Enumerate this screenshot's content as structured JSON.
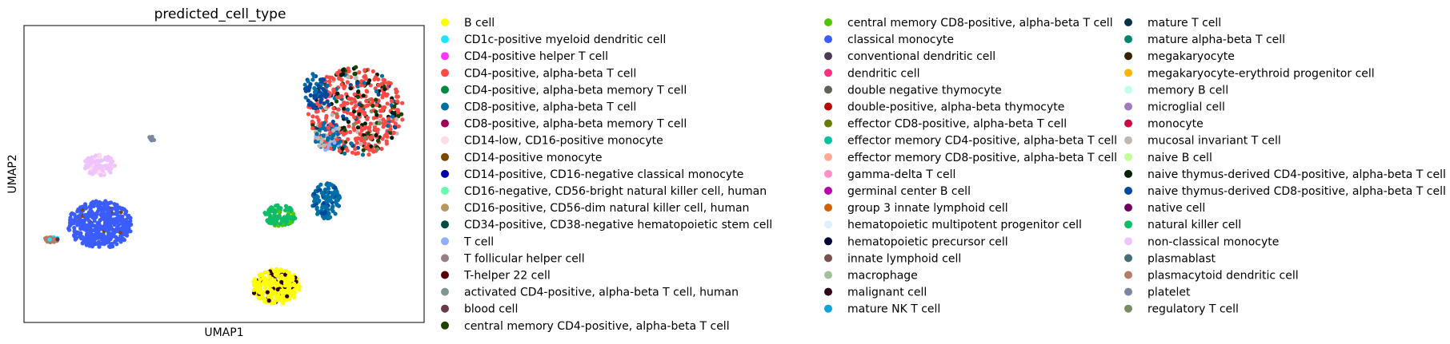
{
  "chart_data": {
    "type": "scatter",
    "title": "predicted_cell_type",
    "xlabel": "UMAP1",
    "ylabel": "UMAP2",
    "ticks": "none",
    "grid": false,
    "legend_position": "right, outside plot, 3 columns",
    "xlim": [
      0,
      100
    ],
    "ylim": [
      0,
      100
    ],
    "categories": [
      {
        "name": "B cell",
        "color": "#ffff00"
      },
      {
        "name": "CD1c-positive myeloid dendritic cell",
        "color": "#1ce6ff"
      },
      {
        "name": "CD4-positive helper T cell",
        "color": "#ff34ff"
      },
      {
        "name": "CD4-positive, alpha-beta T cell",
        "color": "#ff4a46"
      },
      {
        "name": "CD4-positive, alpha-beta memory T cell",
        "color": "#008941"
      },
      {
        "name": "CD8-positive, alpha-beta T cell",
        "color": "#006fa6"
      },
      {
        "name": "CD8-positive, alpha-beta memory T cell",
        "color": "#a30059"
      },
      {
        "name": "CD14-low, CD16-positive monocyte",
        "color": "#ffdbe5"
      },
      {
        "name": "CD14-positive monocyte",
        "color": "#7a4900"
      },
      {
        "name": "CD14-positive, CD16-negative classical monocyte",
        "color": "#0000a6"
      },
      {
        "name": "CD16-negative, CD56-bright natural killer cell, human",
        "color": "#63ffac"
      },
      {
        "name": "CD16-positive, CD56-dim natural killer cell, human",
        "color": "#b79762"
      },
      {
        "name": "CD34-positive, CD38-negative hematopoietic stem cell",
        "color": "#004d43"
      },
      {
        "name": "T cell",
        "color": "#8fb0ff"
      },
      {
        "name": "T follicular helper cell",
        "color": "#997d87"
      },
      {
        "name": "T-helper 22 cell",
        "color": "#5a0007"
      },
      {
        "name": "activated CD4-positive, alpha-beta T cell, human",
        "color": "#809693"
      },
      {
        "name": "blood cell",
        "color": "#6a3a4c"
      },
      {
        "name": "central memory CD4-positive, alpha-beta T cell",
        "color": "#1b4400"
      },
      {
        "name": "central memory CD8-positive, alpha-beta T cell",
        "color": "#4fc601"
      },
      {
        "name": "classical monocyte",
        "color": "#3b5dff"
      },
      {
        "name": "conventional dendritic cell",
        "color": "#4a3b53"
      },
      {
        "name": "dendritic cell",
        "color": "#ff2f80"
      },
      {
        "name": "double negative thymocyte",
        "color": "#61615a"
      },
      {
        "name": "double-positive, alpha-beta thymocyte",
        "color": "#ba0900"
      },
      {
        "name": "effector CD8-positive, alpha-beta T cell",
        "color": "#6b7900"
      },
      {
        "name": "effector memory CD4-positive, alpha-beta T cell",
        "color": "#00c2a0"
      },
      {
        "name": "effector memory CD8-positive, alpha-beta T cell",
        "color": "#ffaa92"
      },
      {
        "name": "gamma-delta T cell",
        "color": "#ff90c9"
      },
      {
        "name": "germinal center B cell",
        "color": "#b903aa"
      },
      {
        "name": "group 3 innate lymphoid cell",
        "color": "#d16100"
      },
      {
        "name": "hematopoietic multipotent progenitor cell",
        "color": "#ddefff"
      },
      {
        "name": "hematopoietic precursor cell",
        "color": "#000035"
      },
      {
        "name": "innate lymphoid cell",
        "color": "#7b4f4b"
      },
      {
        "name": "macrophage",
        "color": "#a1c299"
      },
      {
        "name": "malignant cell",
        "color": "#300018"
      },
      {
        "name": "mature NK T cell",
        "color": "#0aa6d8"
      },
      {
        "name": "mature T cell",
        "color": "#013349"
      },
      {
        "name": "mature alpha-beta T cell",
        "color": "#00846f"
      },
      {
        "name": "megakaryocyte",
        "color": "#372101"
      },
      {
        "name": "megakaryocyte-erythroid progenitor cell",
        "color": "#ffb500"
      },
      {
        "name": "memory B cell",
        "color": "#c2ffed"
      },
      {
        "name": "microglial cell",
        "color": "#a079bf"
      },
      {
        "name": "monocyte",
        "color": "#cc0744"
      },
      {
        "name": "mucosal invariant T cell",
        "color": "#c0b9b2"
      },
      {
        "name": "naive B cell",
        "color": "#c2ff99"
      },
      {
        "name": "naive thymus-derived CD4-positive, alpha-beta T cell",
        "color": "#001e09"
      },
      {
        "name": "naive thymus-derived CD8-positive, alpha-beta T cell",
        "color": "#00489c"
      },
      {
        "name": "native cell",
        "color": "#6f0062"
      },
      {
        "name": "natural killer cell",
        "color": "#0cbd66"
      },
      {
        "name": "non-classical monocyte",
        "color": "#eec3ff"
      },
      {
        "name": "plasmablast",
        "color": "#456d75"
      },
      {
        "name": "plasmacytoid dendritic cell",
        "color": "#b77b68"
      },
      {
        "name": "platelet",
        "color": "#7a87a1"
      },
      {
        "name": "regulatory T cell",
        "color": "#788d66"
      }
    ],
    "clusters": [
      {
        "cx": 83,
        "cy": 71,
        "rx": 12,
        "ry": 15,
        "n": 520,
        "mix": [
          {
            "cell_type": "CD4-positive, alpha-beta T cell",
            "weight": 0.62
          },
          {
            "cell_type": "naive thymus-derived CD4-positive, alpha-beta T cell",
            "weight": 0.14
          },
          {
            "cell_type": "central memory CD4-positive, alpha-beta T cell",
            "weight": 0.08
          },
          {
            "cell_type": "CD8-positive, alpha-beta T cell",
            "weight": 0.06
          },
          {
            "cell_type": "naive thymus-derived CD8-positive, alpha-beta T cell",
            "weight": 0.05
          },
          {
            "cell_type": "mucosal invariant T cell",
            "weight": 0.03
          },
          {
            "cell_type": "regulatory T cell",
            "weight": 0.02
          }
        ]
      },
      {
        "cx": 73,
        "cy": 78,
        "rx": 3,
        "ry": 6,
        "n": 70,
        "mix": [
          {
            "cell_type": "naive thymus-derived CD8-positive, alpha-beta T cell",
            "weight": 0.7
          },
          {
            "cell_type": "CD8-positive, alpha-beta T cell",
            "weight": 0.3
          }
        ]
      },
      {
        "cx": 76,
        "cy": 63,
        "rx": 3.5,
        "ry": 5,
        "n": 90,
        "mix": [
          {
            "cell_type": "CD8-positive, alpha-beta T cell",
            "weight": 0.45
          },
          {
            "cell_type": "mucosal invariant T cell",
            "weight": 0.25
          },
          {
            "cell_type": "T cell",
            "weight": 0.15
          },
          {
            "cell_type": "CD4-positive, alpha-beta T cell",
            "weight": 0.15
          }
        ]
      },
      {
        "cx": 75.5,
        "cy": 41,
        "rx": 3.5,
        "ry": 6,
        "n": 120,
        "mix": [
          {
            "cell_type": "CD8-positive, alpha-beta T cell",
            "weight": 0.85
          },
          {
            "cell_type": "naive thymus-derived CD8-positive, alpha-beta T cell",
            "weight": 0.15
          }
        ]
      },
      {
        "cx": 64,
        "cy": 36,
        "rx": 4,
        "ry": 3.5,
        "n": 110,
        "mix": [
          {
            "cell_type": "natural killer cell",
            "weight": 0.9
          },
          {
            "cell_type": "central memory CD8-positive, alpha-beta T cell",
            "weight": 0.1
          }
        ]
      },
      {
        "cx": 19,
        "cy": 53,
        "rx": 4,
        "ry": 3.5,
        "n": 90,
        "mix": [
          {
            "cell_type": "non-classical monocyte",
            "weight": 0.85
          },
          {
            "cell_type": "CD14-low, CD16-positive monocyte",
            "weight": 0.15
          }
        ]
      },
      {
        "cx": 19,
        "cy": 33,
        "rx": 8,
        "ry": 8,
        "n": 420,
        "mix": [
          {
            "cell_type": "classical monocyte",
            "weight": 0.97
          },
          {
            "cell_type": "CD14-positive monocyte",
            "weight": 0.03
          }
        ]
      },
      {
        "cx": 7,
        "cy": 28,
        "rx": 2,
        "ry": 1,
        "n": 22,
        "mix": [
          {
            "cell_type": "plasmacytoid dendritic cell",
            "weight": 0.5
          },
          {
            "cell_type": "CD1c-positive myeloid dendritic cell",
            "weight": 0.3
          },
          {
            "cell_type": "conventional dendritic cell",
            "weight": 0.2
          }
        ]
      },
      {
        "cx": 32,
        "cy": 62,
        "rx": 0.8,
        "ry": 0.8,
        "n": 6,
        "mix": [
          {
            "cell_type": "platelet",
            "weight": 1.0
          }
        ]
      },
      {
        "cx": 63,
        "cy": 12,
        "rx": 6,
        "ry": 6,
        "n": 300,
        "mix": [
          {
            "cell_type": "B cell",
            "weight": 0.88
          },
          {
            "cell_type": "malignant cell",
            "weight": 0.12
          }
        ]
      }
    ]
  }
}
